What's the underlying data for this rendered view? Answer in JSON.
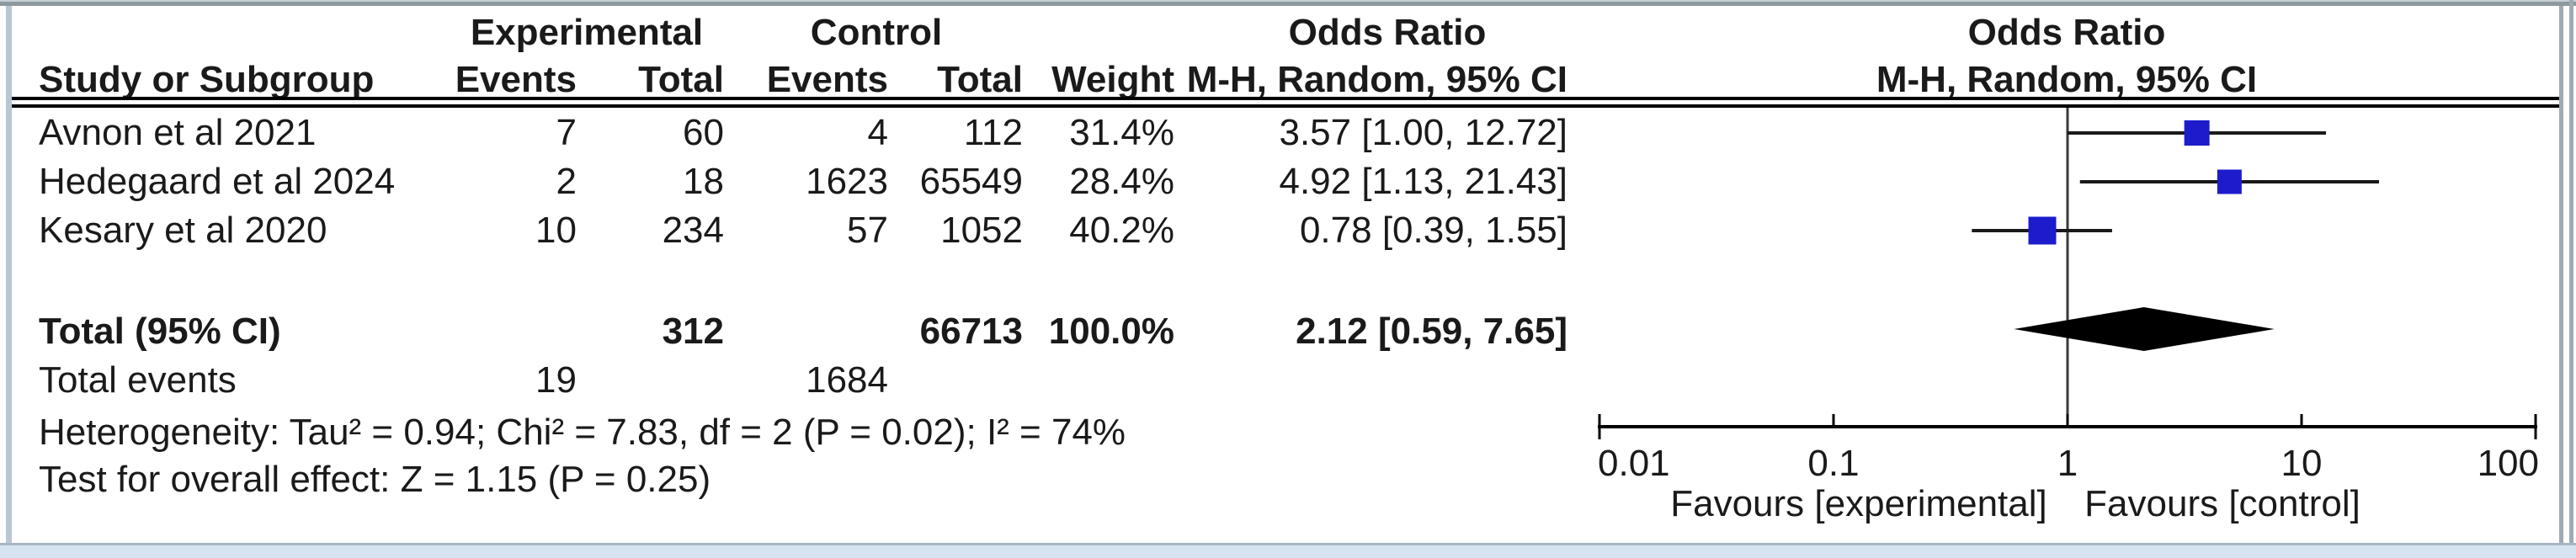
{
  "table": {
    "group_headers": {
      "experimental": "Experimental",
      "control": "Control",
      "odds_ratio": "Odds Ratio"
    },
    "col_headers": {
      "study": "Study or Subgroup",
      "exp_events": "Events",
      "exp_total": "Total",
      "ctrl_events": "Events",
      "ctrl_total": "Total",
      "weight": "Weight",
      "mh_ci": "M-H, Random, 95% CI"
    },
    "plot_header": {
      "line1": "Odds Ratio",
      "line2": "M-H, Random, 95% CI"
    },
    "studies": [
      {
        "name": "Avnon et al 2021",
        "exp_events": "7",
        "exp_total": "60",
        "ctrl_events": "4",
        "ctrl_total": "112",
        "weight": "31.4%",
        "or_ci": "3.57 [1.00, 12.72]"
      },
      {
        "name": "Hedegaard et al 2024",
        "exp_events": "2",
        "exp_total": "18",
        "ctrl_events": "1623",
        "ctrl_total": "65549",
        "weight": "28.4%",
        "or_ci": "4.92 [1.13, 21.43]"
      },
      {
        "name": "Kesary et al 2020",
        "exp_events": "10",
        "exp_total": "234",
        "ctrl_events": "57",
        "ctrl_total": "1052",
        "weight": "40.2%",
        "or_ci": "0.78 [0.39, 1.55]"
      }
    ],
    "total": {
      "label": "Total (95% CI)",
      "exp_total": "312",
      "ctrl_total": "66713",
      "weight": "100.0%",
      "or_ci": "2.12 [0.59, 7.65]"
    },
    "total_events": {
      "label": "Total events",
      "exp": "19",
      "ctrl": "1684"
    },
    "heterogeneity": "Heterogeneity: Tau² = 0.94; Chi² = 7.83, df = 2 (P = 0.02); I² = 74%",
    "overall_effect": "Test for overall effect: Z = 1.15 (P = 0.25)"
  },
  "chart_data": {
    "type": "forest",
    "effect_measure": "Odds Ratio",
    "method": "M-H, Random, 95% CI",
    "scale": "log10",
    "axis": {
      "xlim": [
        0.01,
        100
      ],
      "tick_values": [
        0.01,
        0.1,
        1,
        10,
        100
      ],
      "tick_labels": [
        "0.01",
        "0.1",
        "1",
        "10",
        "100"
      ],
      "left_label": "Favours [experimental]",
      "right_label": "Favours [control]"
    },
    "studies": [
      {
        "name": "Avnon et al 2021",
        "or": 3.57,
        "ci_low": 1.0,
        "ci_high": 12.72,
        "weight_pct": 31.4
      },
      {
        "name": "Hedegaard et al 2024",
        "or": 4.92,
        "ci_low": 1.13,
        "ci_high": 21.43,
        "weight_pct": 28.4
      },
      {
        "name": "Kesary et al 2020",
        "or": 0.78,
        "ci_low": 0.39,
        "ci_high": 1.55,
        "weight_pct": 40.2
      }
    ],
    "total": {
      "or": 2.12,
      "ci_low": 0.59,
      "ci_high": 7.65
    },
    "colors": {
      "square": "#1c1ccd",
      "diamond": "#000000",
      "line": "#1a1a1a",
      "axis": "#000000"
    }
  }
}
